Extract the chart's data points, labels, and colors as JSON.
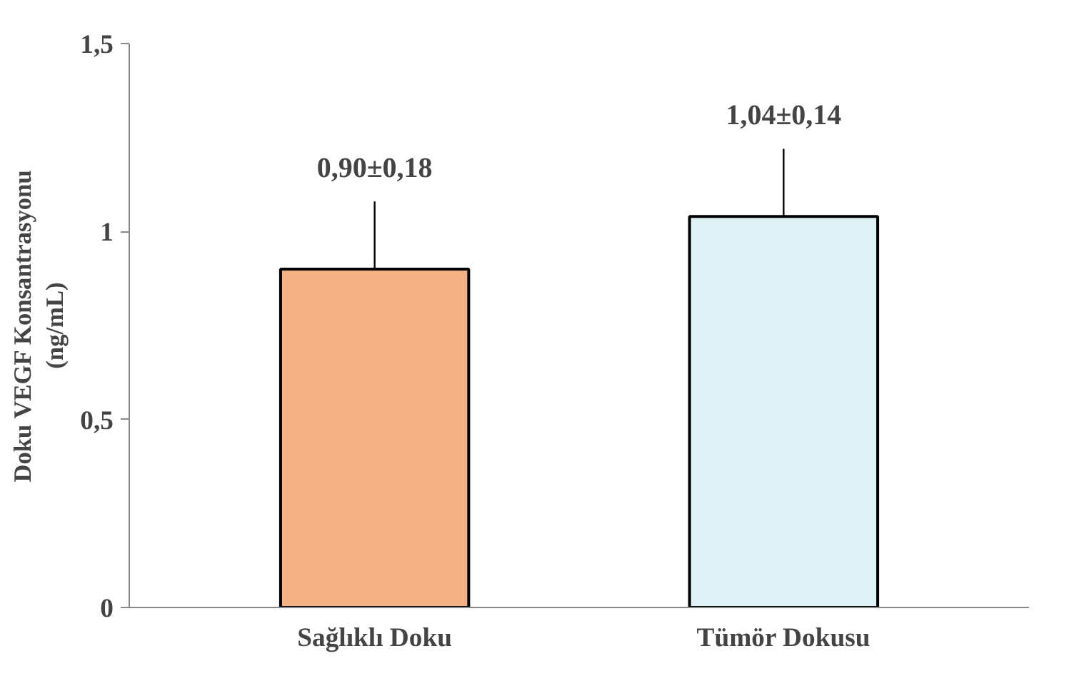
{
  "chart_data": {
    "type": "bar",
    "ylabel": "Doku VEGF Konsantrasyonu\n(ng/mL)",
    "categories": [
      "Sağlıklı Doku",
      "Tümör Dokusu"
    ],
    "values": [
      0.9,
      1.04
    ],
    "colors": [
      "#f4b183",
      "#dff3f7"
    ],
    "errors": [
      [
        0.9,
        1.08
      ],
      [
        1.04,
        1.22
      ]
    ],
    "value_labels": [
      "0,90±0,18",
      "1,04±0,14"
    ],
    "ylim": [
      0,
      1.5
    ],
    "yticks": [
      {
        "value": 0,
        "label": "0"
      },
      {
        "value": 0.5,
        "label": "0,5"
      },
      {
        "value": 1,
        "label": "1"
      },
      {
        "value": 1.5,
        "label": "1,5"
      }
    ],
    "grid": false
  }
}
